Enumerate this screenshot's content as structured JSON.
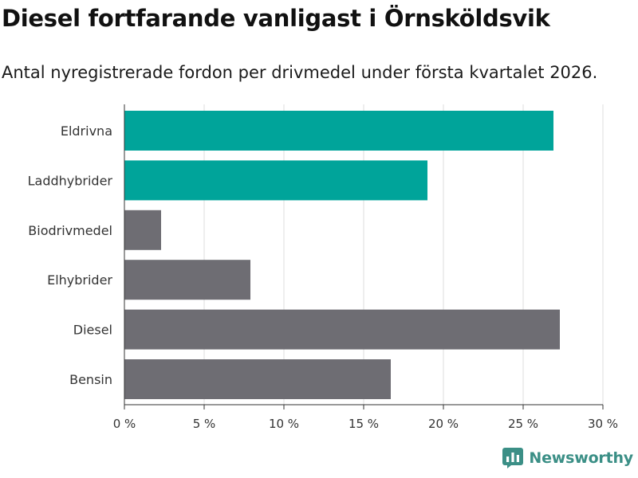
{
  "header": {
    "title": "Diesel fortfarande vanligast i Örnsköldsvik",
    "subtitle": "Antal nyregistrerade fordon per drivmedel under första kvartalet 2026."
  },
  "chart_data": {
    "type": "bar",
    "orientation": "horizontal",
    "categories": [
      "Eldrivna",
      "Laddhybrider",
      "Biodrivmedel",
      "Elhybrider",
      "Diesel",
      "Bensin"
    ],
    "values": [
      26.9,
      19.0,
      2.3,
      7.9,
      27.3,
      16.7
    ],
    "highlighted": [
      true,
      true,
      false,
      false,
      false,
      false
    ],
    "xlim": [
      0,
      30
    ],
    "xticks": [
      0,
      5,
      10,
      15,
      20,
      25,
      30
    ],
    "xtick_labels": [
      "0 %",
      "5 %",
      "10 %",
      "15 %",
      "20 %",
      "25 %",
      "30 %"
    ],
    "grid": true,
    "xlabel": "",
    "ylabel": "",
    "colors": {
      "highlight": "#00a49a",
      "default": "#6e6d73",
      "grid": "#dcdcdc",
      "axis": "#333333"
    }
  },
  "branding": {
    "name": "Newsworthy",
    "icon": "newsworthy-logo-icon",
    "color": "#3b8f86"
  }
}
